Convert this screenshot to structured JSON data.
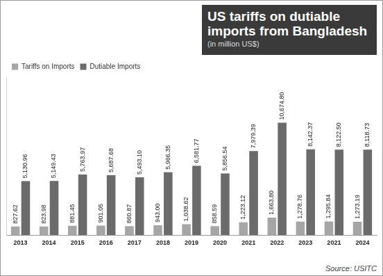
{
  "chart_data": {
    "type": "bar",
    "title": "US tariffs on dutiable imports from Bangladesh",
    "subtitle": "(in million US$)",
    "annotations": [
      "Source: USITC"
    ],
    "categories": [
      "2013",
      "2014",
      "2015",
      "2016",
      "2017",
      "2018",
      "2019",
      "2020",
      "2021",
      "2022",
      "2023",
      "2021",
      "2024"
    ],
    "series": [
      {
        "name": "Tariffs on Imports",
        "color": "#a6a6a6",
        "values": [
          827.62,
          823.98,
          881.45,
          901.05,
          860.87,
          943.0,
          1038.62,
          858.59,
          1223.12,
          1663.8,
          1278.76,
          1295.84,
          1273.19
        ],
        "value_labels": [
          "827.62",
          "823.98",
          "881.45",
          "901.05",
          "860.87",
          "943.00",
          "1,038.62",
          "858.59",
          "1,223.12",
          "1,663.80",
          "1,278.76",
          "1,295.84",
          "1,273.19"
        ]
      },
      {
        "name": "Dutiable Imports",
        "color": "#6b6b6b",
        "values": [
          5130.96,
          5149.43,
          5763.97,
          5687.68,
          5493.1,
          5966.35,
          6581.77,
          5856.54,
          7979.39,
          10674.8,
          8142.37,
          8122.5,
          8118.73
        ],
        "value_labels": [
          "5,130.96",
          "5,149.43",
          "5,763.97",
          "5,687.68",
          "5,493.10",
          "5,966.35",
          "6,581.77",
          "5,856.54",
          "7,979.39",
          "10,674.80",
          "8,142.37",
          "8,122.50",
          "8,118.73"
        ]
      }
    ],
    "ylim": [
      0,
      15000
    ],
    "grid": false,
    "legend": "top-left",
    "data_labels": true,
    "tick_labels": "x"
  }
}
